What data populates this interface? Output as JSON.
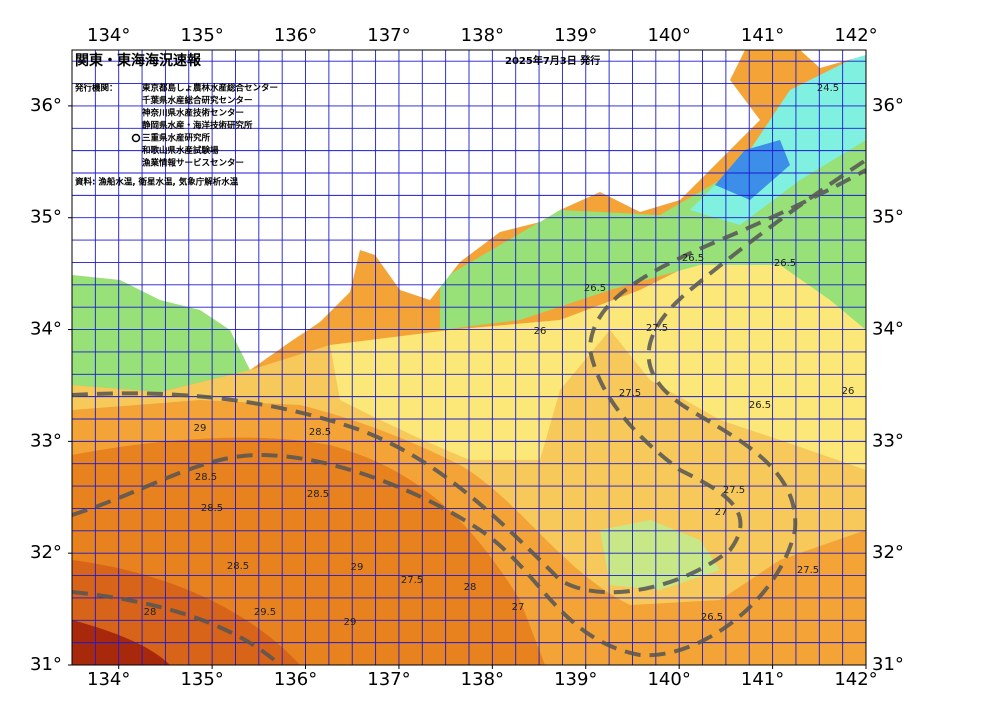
{
  "header": {
    "title": "関東・東海海況速報",
    "issued": "2025年7月3日 発行"
  },
  "agencies": {
    "label": "発行機関：",
    "items": [
      "東京都島しょ農林水産総合センター",
      "千葉県水産総合研究センター",
      "神奈川県水産技術センター",
      "静岡県水産・海洋技術研究所",
      "三重県水産研究所",
      "和歌山県水産試験場",
      "漁業情報サービスセンター"
    ]
  },
  "source": "資料: 漁船水温, 衛星水温, 気象庁解析水温",
  "axes": {
    "lon": {
      "range": [
        133.5,
        142
      ],
      "ticks": [
        {
          "value": 134,
          "label": "134°"
        },
        {
          "value": 135,
          "label": "135°"
        },
        {
          "value": 136,
          "label": "136°"
        },
        {
          "value": 137,
          "label": "137°"
        },
        {
          "value": 138,
          "label": "138°"
        },
        {
          "value": 139,
          "label": "139°"
        },
        {
          "value": 140,
          "label": "140°"
        },
        {
          "value": 141,
          "label": "141°"
        },
        {
          "value": 142,
          "label": "142°"
        }
      ]
    },
    "lat": {
      "range": [
        31,
        36.5
      ],
      "ticks": [
        {
          "value": 31,
          "label": "31°"
        },
        {
          "value": 32,
          "label": "32°"
        },
        {
          "value": 33,
          "label": "33°"
        },
        {
          "value": 34,
          "label": "34°"
        },
        {
          "value": 35,
          "label": "35°"
        },
        {
          "value": 36,
          "label": "36°"
        }
      ]
    }
  },
  "contour_labels": [
    "24.5",
    "26",
    "26.5",
    "26.5",
    "26.5",
    "27.5",
    "27.5",
    "27",
    "27.5",
    "28.5",
    "28.5",
    "28.5",
    "28.5",
    "28.5",
    "29",
    "29",
    "29.5",
    "29",
    "28",
    "27.5",
    "27",
    "26.5",
    "27.5",
    "26.5",
    "28",
    "26"
  ]
}
